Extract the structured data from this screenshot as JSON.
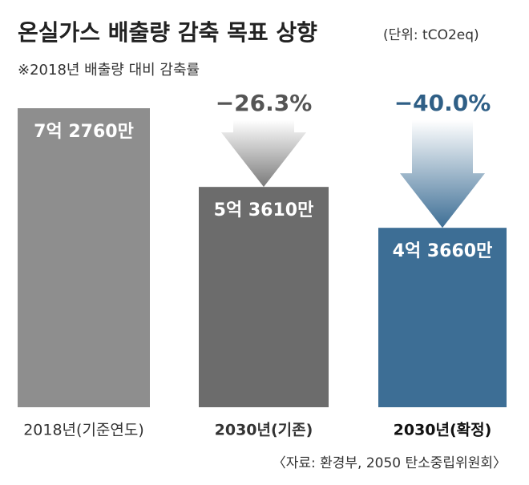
{
  "chart_data": {
    "type": "bar",
    "title": "온실가스 배출량 감축 목표 상향",
    "subtitle": "(단위: tCO2eq)",
    "note": "※2018년 배출량 대비 감축률",
    "source": "〈자료: 환경부, 2050 탄소중립위원회〉",
    "categories": [
      "2018년(기준연도)",
      "2030년(기존)",
      "2030년(확정)"
    ],
    "values": [
      727600000,
      536100000,
      436600000
    ],
    "value_labels": [
      "7억 2760만",
      "5억 3610만",
      "4억 3660만"
    ],
    "colors": [
      "#8e8e8e",
      "#6c6c6c",
      "#3d6e95"
    ],
    "annotations": [
      null,
      "−26.3%",
      "−40.0%"
    ]
  }
}
